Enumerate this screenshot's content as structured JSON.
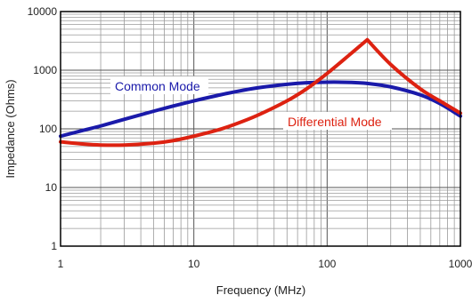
{
  "chart_data": {
    "type": "line",
    "title": "",
    "xlabel": "Frequency (MHz)",
    "ylabel": "Impedance (Ohms)",
    "x_scale": "log",
    "y_scale": "log",
    "xlim": [
      1,
      1000
    ],
    "ylim": [
      1,
      10000
    ],
    "x_ticks": [
      "1",
      "10",
      "100",
      "1000"
    ],
    "y_ticks": [
      "1",
      "10",
      "100",
      "1000",
      "10000"
    ],
    "grid": true,
    "series": [
      {
        "name": "Common Mode",
        "color": "#1a1aaa",
        "x": [
          1,
          1.5,
          2,
          3,
          5,
          7,
          10,
          15,
          20,
          30,
          50,
          70,
          100,
          150,
          200,
          300,
          500,
          700,
          1000
        ],
        "y": [
          75,
          95,
          112,
          145,
          200,
          245,
          300,
          370,
          425,
          500,
          575,
          610,
          625,
          620,
          595,
          520,
          380,
          270,
          165
        ]
      },
      {
        "name": "Differential Mode",
        "color": "#dd2211",
        "x": [
          1,
          1.5,
          2,
          3,
          5,
          7,
          10,
          15,
          20,
          30,
          50,
          70,
          100,
          150,
          200,
          300,
          500,
          700,
          1000
        ],
        "y": [
          60,
          55,
          53,
          53,
          57,
          63,
          75,
          95,
          118,
          170,
          300,
          480,
          880,
          1900,
          3300,
          1250,
          480,
          300,
          185
        ]
      }
    ],
    "annotations": [
      {
        "text": "Common Mode",
        "color": "#1a1aaa"
      },
      {
        "text": "Differential Mode",
        "color": "#dd2211"
      }
    ]
  }
}
